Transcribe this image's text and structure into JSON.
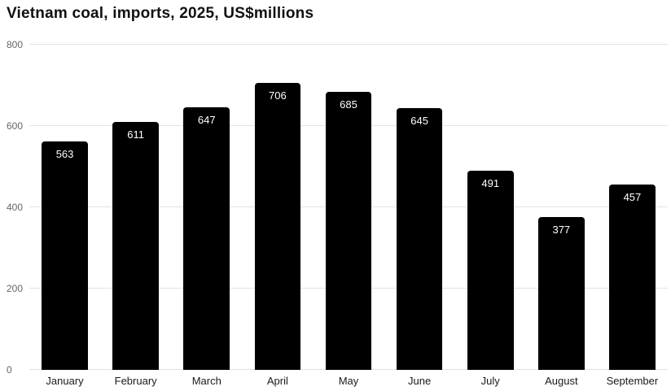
{
  "chart_data": {
    "type": "bar",
    "title": "Vietnam coal, imports, 2025, US$millions",
    "categories": [
      "January",
      "February",
      "March",
      "April",
      "May",
      "June",
      "July",
      "August",
      "September"
    ],
    "values": [
      563,
      611,
      647,
      706,
      685,
      645,
      491,
      377,
      457
    ],
    "xlabel": "",
    "ylabel": "",
    "ylim": [
      0,
      800
    ],
    "yticks": [
      0,
      200,
      400,
      600,
      800
    ],
    "grid": true,
    "legend": "none",
    "bar_color": "#000000",
    "value_label_color": "#ffffff",
    "gridline_color": "#e3e3e3",
    "tick_label_color": "#666666"
  }
}
